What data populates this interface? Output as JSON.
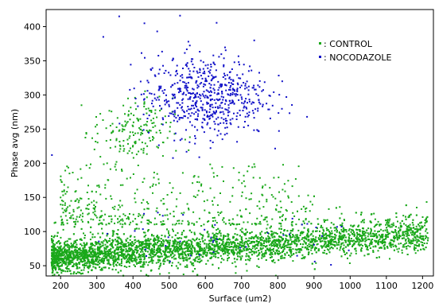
{
  "chart_data": {
    "type": "scatter",
    "title": "",
    "xlabel": "Surface (um2)",
    "ylabel": "Phase avg (nm)",
    "xlim": [
      160,
      1230
    ],
    "ylim": [
      35,
      425
    ],
    "xticks": [
      200,
      300,
      400,
      500,
      600,
      700,
      800,
      900,
      1000,
      1100,
      1200
    ],
    "yticks": [
      50,
      100,
      150,
      200,
      250,
      300,
      350,
      400
    ],
    "grid": false,
    "legend_position": "top-right",
    "series": [
      {
        "name": ": CONTROL",
        "color": "#1aa81a",
        "clusters": [
          {
            "label": "main band",
            "count": 5200,
            "x_range": [
              175,
              1215
            ],
            "y_center_at_x200": 63,
            "y_center_at_x1200": 95,
            "y_spread": 12
          },
          {
            "label": "upper cluster",
            "count": 180,
            "x_center": 400,
            "y_center": 245,
            "x_spread": 55,
            "y_spread": 25
          },
          {
            "label": "sparse mid",
            "count": 420,
            "x_range": [
              200,
              900
            ],
            "y_range": [
              110,
              200
            ]
          }
        ]
      },
      {
        "name": ": NOCODAZOLE",
        "color": "#1212c8",
        "clusters": [
          {
            "label": "main cluster",
            "count": 620,
            "x_center": 600,
            "y_center": 298,
            "x_spread": 85,
            "y_spread": 30
          },
          {
            "label": "low scattered",
            "count": 40,
            "x_range": [
              300,
              1000
            ],
            "y_range": [
              45,
              130
            ]
          }
        ],
        "outliers": [
          {
            "x": 362,
            "y": 415
          },
          {
            "x": 530,
            "y": 416
          },
          {
            "x": 318,
            "y": 385
          },
          {
            "x": 467,
            "y": 393
          },
          {
            "x": 553,
            "y": 378
          },
          {
            "x": 176,
            "y": 212
          }
        ]
      }
    ]
  }
}
